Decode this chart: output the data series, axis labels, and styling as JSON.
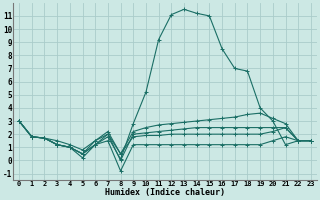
{
  "background_color": "#cce8e4",
  "grid_color": "#aaccca",
  "line_color": "#1a6e65",
  "xlabel": "Humidex (Indice chaleur)",
  "xlim": [
    -0.5,
    23.5
  ],
  "ylim": [
    -1.5,
    12.0
  ],
  "xticks": [
    0,
    1,
    2,
    3,
    4,
    5,
    6,
    7,
    8,
    9,
    10,
    11,
    12,
    13,
    14,
    15,
    16,
    17,
    18,
    19,
    20,
    21,
    22,
    23
  ],
  "yticks": [
    -1,
    0,
    1,
    2,
    3,
    4,
    5,
    6,
    7,
    8,
    9,
    10,
    11
  ],
  "series": [
    [
      3.0,
      1.8,
      1.7,
      1.2,
      1.0,
      0.2,
      1.2,
      1.8,
      0.1,
      2.8,
      5.2,
      9.2,
      11.1,
      11.5,
      11.2,
      11.0,
      8.5,
      7.0,
      6.8,
      4.0,
      3.0,
      1.2,
      1.5,
      1.5
    ],
    [
      3.0,
      1.8,
      1.7,
      1.2,
      1.0,
      0.5,
      1.5,
      2.0,
      0.5,
      2.2,
      2.5,
      2.7,
      2.8,
      2.9,
      3.0,
      3.1,
      3.2,
      3.3,
      3.5,
      3.6,
      3.2,
      2.8,
      1.5,
      1.5
    ],
    [
      3.0,
      1.8,
      1.7,
      1.2,
      1.0,
      0.5,
      1.2,
      2.0,
      0.0,
      2.0,
      2.1,
      2.2,
      2.3,
      2.4,
      2.5,
      2.5,
      2.5,
      2.5,
      2.5,
      2.5,
      2.5,
      2.5,
      1.5,
      1.5
    ],
    [
      3.0,
      1.8,
      1.7,
      1.5,
      1.2,
      0.8,
      1.5,
      2.2,
      0.5,
      1.8,
      1.9,
      1.9,
      2.0,
      2.0,
      2.0,
      2.0,
      2.0,
      2.0,
      2.0,
      2.0,
      2.2,
      2.5,
      1.5,
      1.5
    ],
    [
      3.0,
      1.8,
      1.7,
      1.2,
      1.0,
      0.5,
      1.2,
      1.5,
      -0.8,
      1.2,
      1.2,
      1.2,
      1.2,
      1.2,
      1.2,
      1.2,
      1.2,
      1.2,
      1.2,
      1.2,
      1.5,
      1.8,
      1.5,
      1.5
    ]
  ]
}
